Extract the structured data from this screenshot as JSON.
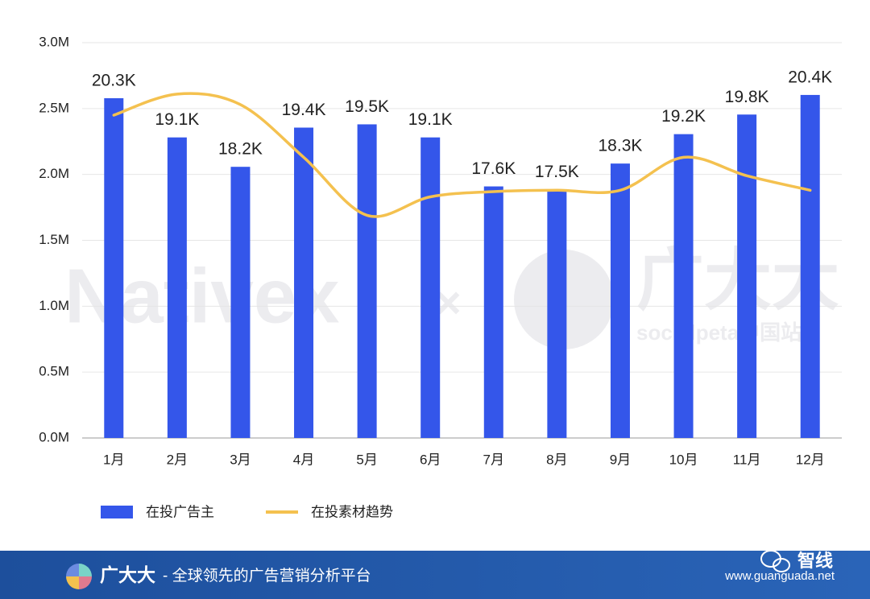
{
  "chart_data": {
    "type": "combo",
    "categories": [
      "1月",
      "2月",
      "3月",
      "4月",
      "5月",
      "6月",
      "7月",
      "8月",
      "9月",
      "10月",
      "11月",
      "12月"
    ],
    "series": [
      {
        "name": "在投广告主",
        "type": "bar",
        "color": "#3456ea",
        "axis": "y2",
        "values": [
          20300,
          19100,
          18200,
          19400,
          19500,
          19100,
          17600,
          17500,
          18300,
          19200,
          19800,
          20400
        ],
        "value_labels": [
          "20.3K",
          "19.1K",
          "18.2K",
          "19.4K",
          "19.5K",
          "19.1K",
          "17.6K",
          "17.5K",
          "18.3K",
          "19.2K",
          "19.8K",
          "20.4K"
        ]
      },
      {
        "name": "在投素材趋势",
        "type": "line",
        "color": "#f4c14f",
        "values": [
          2450000,
          2610000,
          2530000,
          2130000,
          1690000,
          1830000,
          1870000,
          1880000,
          1880000,
          2130000,
          1990000,
          1880000
        ]
      }
    ],
    "ylim": [
      0,
      3000000
    ],
    "yticks": [
      {
        "value": 0,
        "label": "0.0M"
      },
      {
        "value": 500000,
        "label": "0.5M"
      },
      {
        "value": 1000000,
        "label": "1.0M"
      },
      {
        "value": 1500000,
        "label": "1.5M"
      },
      {
        "value": 2000000,
        "label": "2.0M"
      },
      {
        "value": 2500000,
        "label": "2.5M"
      },
      {
        "value": 3000000,
        "label": "3.0M"
      }
    ],
    "y2lim": [
      9900,
      22000
    ],
    "grid": true,
    "legend": "bottom"
  },
  "watermark": {
    "brand_a": "Nativex",
    "separator": "×",
    "brand_b": "广大大",
    "brand_b_sub": "socialpeta中国站"
  },
  "footer": {
    "brand": "广大大",
    "slogan": "- 全球领先的广告营销分析平台",
    "account": "智线",
    "url": "www.guanguada.net"
  }
}
